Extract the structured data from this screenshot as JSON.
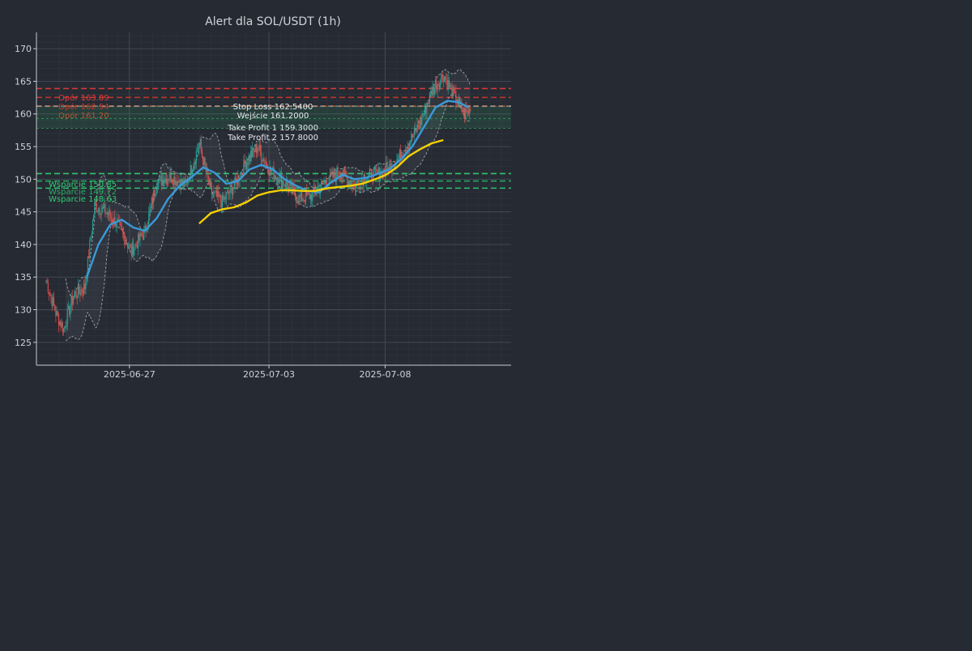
{
  "chart_data": {
    "type": "candlestick",
    "title": "Alert dla SOL/USDT (1h)",
    "xlabel": "",
    "ylabel": "",
    "ylim": [
      121.5,
      172.5
    ],
    "y_ticks": [
      125,
      130,
      135,
      140,
      145,
      150,
      155,
      160,
      165,
      170
    ],
    "x_range": [
      "2025-06-23T10:00",
      "2025-07-13T10:00"
    ],
    "x_ticks": [
      "2025-06-27",
      "2025-07-03",
      "2025-07-08"
    ],
    "grid": true,
    "colors": {
      "background": "#262a33",
      "text": "#d0d3da",
      "grid": "#3a404c",
      "up": "#26a69a",
      "down": "#ef5350",
      "sma_fast": "#3a9ad9",
      "sma_slow": "#f5d000",
      "resistance": "#e53935",
      "support": "#2ecc71",
      "entry": "#d0d3da",
      "band": "#b8bcc6"
    },
    "ohlc_anchors": [
      {
        "t": "2025-06-23T10:00",
        "close": 134.5
      },
      {
        "t": "2025-06-23T20:00",
        "close": 129.5
      },
      {
        "t": "2025-06-24T04:00",
        "close": 127.0
      },
      {
        "t": "2025-06-24T14:00",
        "close": 132.0
      },
      {
        "t": "2025-06-25T02:00",
        "close": 133.5
      },
      {
        "t": "2025-06-25T12:00",
        "close": 146.0
      },
      {
        "t": "2025-06-26T00:00",
        "close": 145.0
      },
      {
        "t": "2025-06-26T12:00",
        "close": 143.0
      },
      {
        "t": "2025-06-27T02:00",
        "close": 139.0
      },
      {
        "t": "2025-06-27T16:00",
        "close": 142.0
      },
      {
        "t": "2025-06-28T04:00",
        "close": 149.5
      },
      {
        "t": "2025-06-28T18:00",
        "close": 150.5
      },
      {
        "t": "2025-06-29T10:00",
        "close": 149.0
      },
      {
        "t": "2025-06-30T00:00",
        "close": 155.5
      },
      {
        "t": "2025-06-30T12:00",
        "close": 148.0
      },
      {
        "t": "2025-07-01T00:00",
        "close": 146.5
      },
      {
        "t": "2025-07-01T12:00",
        "close": 149.0
      },
      {
        "t": "2025-07-02T00:00",
        "close": 152.5
      },
      {
        "t": "2025-07-02T12:00",
        "close": 155.0
      },
      {
        "t": "2025-07-03T00:00",
        "close": 151.5
      },
      {
        "t": "2025-07-03T16:00",
        "close": 149.5
      },
      {
        "t": "2025-07-04T06:00",
        "close": 147.0
      },
      {
        "t": "2025-07-04T20:00",
        "close": 147.5
      },
      {
        "t": "2025-07-05T14:00",
        "close": 150.0
      },
      {
        "t": "2025-07-06T02:00",
        "close": 151.0
      },
      {
        "t": "2025-07-06T16:00",
        "close": 149.0
      },
      {
        "t": "2025-07-07T04:00",
        "close": 150.5
      },
      {
        "t": "2025-07-07T20:00",
        "close": 151.0
      },
      {
        "t": "2025-07-08T10:00",
        "close": 152.5
      },
      {
        "t": "2025-07-09T00:00",
        "close": 155.5
      },
      {
        "t": "2025-07-09T12:00",
        "close": 158.5
      },
      {
        "t": "2025-07-10T00:00",
        "close": 163.5
      },
      {
        "t": "2025-07-10T12:00",
        "close": 166.0
      },
      {
        "t": "2025-07-11T00:00",
        "close": 162.5
      },
      {
        "t": "2025-07-11T10:00",
        "close": 160.0
      },
      {
        "t": "2025-07-11T16:00",
        "close": 160.5
      }
    ],
    "sma_fast": [
      {
        "t": "2025-06-25T04:00",
        "v": 135.0
      },
      {
        "t": "2025-06-25T16:00",
        "v": 140.0
      },
      {
        "t": "2025-06-26T04:00",
        "v": 143.0
      },
      {
        "t": "2025-06-26T16:00",
        "v": 143.8
      },
      {
        "t": "2025-06-27T04:00",
        "v": 142.6
      },
      {
        "t": "2025-06-27T16:00",
        "v": 142.1
      },
      {
        "t": "2025-06-28T04:00",
        "v": 144.0
      },
      {
        "t": "2025-06-28T16:00",
        "v": 147.0
      },
      {
        "t": "2025-06-29T04:00",
        "v": 149.0
      },
      {
        "t": "2025-06-29T16:00",
        "v": 150.3
      },
      {
        "t": "2025-06-30T04:00",
        "v": 151.8
      },
      {
        "t": "2025-06-30T16:00",
        "v": 151.0
      },
      {
        "t": "2025-07-01T04:00",
        "v": 149.3
      },
      {
        "t": "2025-07-01T16:00",
        "v": 149.7
      },
      {
        "t": "2025-07-02T04:00",
        "v": 151.5
      },
      {
        "t": "2025-07-02T16:00",
        "v": 152.2
      },
      {
        "t": "2025-07-03T04:00",
        "v": 151.5
      },
      {
        "t": "2025-07-03T16:00",
        "v": 150.0
      },
      {
        "t": "2025-07-04T04:00",
        "v": 149.0
      },
      {
        "t": "2025-07-04T16:00",
        "v": 148.2
      },
      {
        "t": "2025-07-05T04:00",
        "v": 148.0
      },
      {
        "t": "2025-07-05T16:00",
        "v": 149.5
      },
      {
        "t": "2025-07-06T04:00",
        "v": 150.7
      },
      {
        "t": "2025-07-06T16:00",
        "v": 150.0
      },
      {
        "t": "2025-07-07T04:00",
        "v": 150.2
      },
      {
        "t": "2025-07-07T16:00",
        "v": 150.8
      },
      {
        "t": "2025-07-08T04:00",
        "v": 151.5
      },
      {
        "t": "2025-07-08T16:00",
        "v": 153.0
      },
      {
        "t": "2025-07-09T04:00",
        "v": 155.0
      },
      {
        "t": "2025-07-09T16:00",
        "v": 158.0
      },
      {
        "t": "2025-07-10T04:00",
        "v": 161.0
      },
      {
        "t": "2025-07-10T16:00",
        "v": 162.0
      },
      {
        "t": "2025-07-11T04:00",
        "v": 161.8
      },
      {
        "t": "2025-07-11T14:00",
        "v": 161.0
      }
    ],
    "sma_slow": [
      {
        "t": "2025-06-30T00:00",
        "v": 143.2
      },
      {
        "t": "2025-06-30T12:00",
        "v": 144.8
      },
      {
        "t": "2025-07-01T00:00",
        "v": 145.4
      },
      {
        "t": "2025-07-01T12:00",
        "v": 145.7
      },
      {
        "t": "2025-07-02T00:00",
        "v": 146.4
      },
      {
        "t": "2025-07-02T12:00",
        "v": 147.5
      },
      {
        "t": "2025-07-03T00:00",
        "v": 148.0
      },
      {
        "t": "2025-07-03T12:00",
        "v": 148.3
      },
      {
        "t": "2025-07-04T00:00",
        "v": 148.3
      },
      {
        "t": "2025-07-04T12:00",
        "v": 148.2
      },
      {
        "t": "2025-07-05T00:00",
        "v": 148.2
      },
      {
        "t": "2025-07-05T12:00",
        "v": 148.6
      },
      {
        "t": "2025-07-06T00:00",
        "v": 148.8
      },
      {
        "t": "2025-07-06T12:00",
        "v": 149.0
      },
      {
        "t": "2025-07-07T00:00",
        "v": 149.3
      },
      {
        "t": "2025-07-07T12:00",
        "v": 149.9
      },
      {
        "t": "2025-07-08T00:00",
        "v": 150.6
      },
      {
        "t": "2025-07-08T12:00",
        "v": 151.8
      },
      {
        "t": "2025-07-09T00:00",
        "v": 153.5
      },
      {
        "t": "2025-07-09T12:00",
        "v": 154.6
      },
      {
        "t": "2025-07-10T00:00",
        "v": 155.5
      },
      {
        "t": "2025-07-10T12:00",
        "v": 156.0
      }
    ],
    "levels": [
      {
        "label": "Opór 163.89",
        "value": 163.89,
        "kind": "resistance",
        "color": "#e53935"
      },
      {
        "label": "Opór 162.54",
        "value": 162.54,
        "kind": "resistance",
        "color": "#c0392b"
      },
      {
        "label": "Opór 161.20",
        "value": 161.2,
        "kind": "resistance",
        "color": "#b4532b"
      },
      {
        "label": "Wsparcie 150.85",
        "value": 150.85,
        "kind": "support",
        "color": "#2ecc71"
      },
      {
        "label": "Wsparcie 149.72",
        "value": 149.72,
        "kind": "support",
        "color": "#27ae60"
      },
      {
        "label": "Wsparcie 148.63",
        "value": 148.63,
        "kind": "support",
        "color": "#2ecc71"
      }
    ],
    "trade_levels": [
      {
        "label": "Stop Loss 162.5400",
        "value": 162.54
      },
      {
        "label": "Wejście 161.2000",
        "value": 161.2
      },
      {
        "label": "Take Profit 1 159.3000",
        "value": 159.3
      },
      {
        "label": "Take Profit 2 157.8000",
        "value": 157.8
      }
    ]
  }
}
